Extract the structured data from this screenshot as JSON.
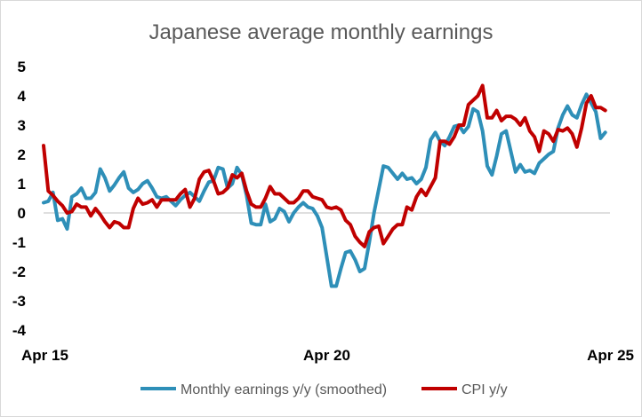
{
  "chart_data": {
    "type": "line",
    "title": "Japanese average monthly earnings",
    "xlabel": "",
    "ylabel": "",
    "ylim": [
      -4,
      5
    ],
    "yticks": [
      5,
      4,
      3,
      2,
      1,
      0,
      -1,
      -2,
      -3,
      -4
    ],
    "xlim": [
      "2015-04",
      "2025-04"
    ],
    "xticks": [
      {
        "label": "Apr 15",
        "x": "2015-04"
      },
      {
        "label": "Apr 20",
        "x": "2020-04"
      },
      {
        "label": "Apr 25",
        "x": "2025-04"
      }
    ],
    "grid": false,
    "legend_position": "bottom",
    "series": [
      {
        "name": "Monthly earnings y/y (smoothed)",
        "color": "#2e8fb8",
        "points": [
          [
            "2015-04",
            0.35
          ],
          [
            "2015-05",
            0.4
          ],
          [
            "2015-06",
            0.7
          ],
          [
            "2015-07",
            -0.25
          ],
          [
            "2015-08",
            -0.2
          ],
          [
            "2015-09",
            -0.55
          ],
          [
            "2015-10",
            0.55
          ],
          [
            "2015-11",
            0.65
          ],
          [
            "2015-12",
            0.85
          ],
          [
            "2016-01",
            0.5
          ],
          [
            "2016-02",
            0.5
          ],
          [
            "2016-03",
            0.7
          ],
          [
            "2016-04",
            1.5
          ],
          [
            "2016-05",
            1.2
          ],
          [
            "2016-06",
            0.75
          ],
          [
            "2016-07",
            0.95
          ],
          [
            "2016-08",
            1.2
          ],
          [
            "2016-09",
            1.4
          ],
          [
            "2016-10",
            0.85
          ],
          [
            "2016-11",
            0.7
          ],
          [
            "2016-12",
            0.8
          ],
          [
            "2017-01",
            1.0
          ],
          [
            "2017-02",
            1.1
          ],
          [
            "2017-03",
            0.85
          ],
          [
            "2017-04",
            0.55
          ],
          [
            "2017-05",
            0.5
          ],
          [
            "2017-06",
            0.55
          ],
          [
            "2017-07",
            0.4
          ],
          [
            "2017-08",
            0.25
          ],
          [
            "2017-09",
            0.45
          ],
          [
            "2017-10",
            0.6
          ],
          [
            "2017-11",
            0.7
          ],
          [
            "2017-12",
            0.55
          ],
          [
            "2018-01",
            0.4
          ],
          [
            "2018-02",
            0.75
          ],
          [
            "2018-03",
            1.05
          ],
          [
            "2018-04",
            1.1
          ],
          [
            "2018-05",
            1.55
          ],
          [
            "2018-06",
            1.5
          ],
          [
            "2018-07",
            0.85
          ],
          [
            "2018-08",
            1.0
          ],
          [
            "2018-09",
            1.55
          ],
          [
            "2018-10",
            1.3
          ],
          [
            "2018-11",
            0.6
          ],
          [
            "2018-12",
            -0.35
          ],
          [
            "2019-01",
            -0.4
          ],
          [
            "2019-02",
            -0.4
          ],
          [
            "2019-03",
            0.3
          ],
          [
            "2019-04",
            -0.3
          ],
          [
            "2019-05",
            -0.2
          ],
          [
            "2019-06",
            0.15
          ],
          [
            "2019-07",
            0.05
          ],
          [
            "2019-08",
            -0.3
          ],
          [
            "2019-09",
            0.0
          ],
          [
            "2019-10",
            0.2
          ],
          [
            "2019-11",
            0.35
          ],
          [
            "2019-12",
            0.2
          ],
          [
            "2020-01",
            0.15
          ],
          [
            "2020-02",
            -0.1
          ],
          [
            "2020-03",
            -0.5
          ],
          [
            "2020-04",
            -1.5
          ],
          [
            "2020-05",
            -2.5
          ],
          [
            "2020-06",
            -2.5
          ],
          [
            "2020-07",
            -1.9
          ],
          [
            "2020-08",
            -1.35
          ],
          [
            "2020-09",
            -1.3
          ],
          [
            "2020-10",
            -1.6
          ],
          [
            "2020-11",
            -2.0
          ],
          [
            "2020-12",
            -1.9
          ],
          [
            "2021-01",
            -1.0
          ],
          [
            "2021-02",
            0.0
          ],
          [
            "2021-03",
            0.8
          ],
          [
            "2021-04",
            1.6
          ],
          [
            "2021-05",
            1.55
          ],
          [
            "2021-06",
            1.35
          ],
          [
            "2021-07",
            1.15
          ],
          [
            "2021-08",
            1.35
          ],
          [
            "2021-09",
            1.15
          ],
          [
            "2021-10",
            1.2
          ],
          [
            "2021-11",
            1.0
          ],
          [
            "2021-12",
            1.15
          ],
          [
            "2022-01",
            1.55
          ],
          [
            "2022-02",
            2.5
          ],
          [
            "2022-03",
            2.75
          ],
          [
            "2022-04",
            2.45
          ],
          [
            "2022-05",
            2.3
          ],
          [
            "2022-06",
            2.6
          ],
          [
            "2022-07",
            2.95
          ],
          [
            "2022-08",
            3.0
          ],
          [
            "2022-09",
            2.75
          ],
          [
            "2022-10",
            2.95
          ],
          [
            "2022-11",
            3.55
          ],
          [
            "2022-12",
            3.45
          ],
          [
            "2023-01",
            2.8
          ],
          [
            "2023-02",
            1.6
          ],
          [
            "2023-03",
            1.3
          ],
          [
            "2023-04",
            1.95
          ],
          [
            "2023-05",
            2.7
          ],
          [
            "2023-06",
            2.8
          ],
          [
            "2023-07",
            2.1
          ],
          [
            "2023-08",
            1.4
          ],
          [
            "2023-09",
            1.65
          ],
          [
            "2023-10",
            1.4
          ],
          [
            "2023-11",
            1.45
          ],
          [
            "2023-12",
            1.35
          ],
          [
            "2024-01",
            1.7
          ],
          [
            "2024-02",
            1.85
          ],
          [
            "2024-03",
            2.0
          ],
          [
            "2024-04",
            2.1
          ],
          [
            "2024-05",
            2.9
          ],
          [
            "2024-06",
            3.35
          ],
          [
            "2024-07",
            3.65
          ],
          [
            "2024-08",
            3.35
          ],
          [
            "2024-09",
            3.25
          ],
          [
            "2024-10",
            3.7
          ],
          [
            "2024-11",
            4.05
          ],
          [
            "2024-12",
            3.75
          ],
          [
            "2025-01",
            3.45
          ],
          [
            "2025-02",
            2.55
          ],
          [
            "2025-03",
            2.75
          ]
        ]
      },
      {
        "name": "CPI y/y",
        "color": "#c00000",
        "points": [
          [
            "2015-04",
            2.3
          ],
          [
            "2015-05",
            0.75
          ],
          [
            "2015-06",
            0.6
          ],
          [
            "2015-07",
            0.4
          ],
          [
            "2015-08",
            0.25
          ],
          [
            "2015-09",
            0.0
          ],
          [
            "2015-10",
            0.05
          ],
          [
            "2015-11",
            0.3
          ],
          [
            "2015-12",
            0.2
          ],
          [
            "2016-01",
            0.2
          ],
          [
            "2016-02",
            -0.1
          ],
          [
            "2016-03",
            0.15
          ],
          [
            "2016-04",
            -0.05
          ],
          [
            "2016-05",
            -0.3
          ],
          [
            "2016-06",
            -0.5
          ],
          [
            "2016-07",
            -0.3
          ],
          [
            "2016-08",
            -0.35
          ],
          [
            "2016-09",
            -0.5
          ],
          [
            "2016-10",
            -0.5
          ],
          [
            "2016-11",
            0.15
          ],
          [
            "2016-12",
            0.5
          ],
          [
            "2017-01",
            0.3
          ],
          [
            "2017-02",
            0.35
          ],
          [
            "2017-03",
            0.45
          ],
          [
            "2017-04",
            0.2
          ],
          [
            "2017-05",
            0.45
          ],
          [
            "2017-06",
            0.45
          ],
          [
            "2017-07",
            0.45
          ],
          [
            "2017-08",
            0.45
          ],
          [
            "2017-09",
            0.65
          ],
          [
            "2017-10",
            0.8
          ],
          [
            "2017-11",
            0.2
          ],
          [
            "2017-12",
            0.5
          ],
          [
            "2018-01",
            1.15
          ],
          [
            "2018-02",
            1.4
          ],
          [
            "2018-03",
            1.45
          ],
          [
            "2018-04",
            1.1
          ],
          [
            "2018-05",
            0.65
          ],
          [
            "2018-06",
            0.7
          ],
          [
            "2018-07",
            0.85
          ],
          [
            "2018-08",
            1.3
          ],
          [
            "2018-09",
            1.2
          ],
          [
            "2018-10",
            1.35
          ],
          [
            "2018-11",
            0.75
          ],
          [
            "2018-12",
            0.3
          ],
          [
            "2019-01",
            0.2
          ],
          [
            "2019-02",
            0.2
          ],
          [
            "2019-03",
            0.5
          ],
          [
            "2019-04",
            0.9
          ],
          [
            "2019-05",
            0.65
          ],
          [
            "2019-06",
            0.65
          ],
          [
            "2019-07",
            0.5
          ],
          [
            "2019-08",
            0.35
          ],
          [
            "2019-09",
            0.35
          ],
          [
            "2019-10",
            0.5
          ],
          [
            "2019-11",
            0.75
          ],
          [
            "2019-12",
            0.75
          ],
          [
            "2020-01",
            0.55
          ],
          [
            "2020-02",
            0.5
          ],
          [
            "2020-03",
            0.45
          ],
          [
            "2020-04",
            0.2
          ],
          [
            "2020-05",
            0.15
          ],
          [
            "2020-06",
            0.2
          ],
          [
            "2020-07",
            0.1
          ],
          [
            "2020-08",
            -0.25
          ],
          [
            "2020-09",
            -0.4
          ],
          [
            "2020-10",
            -0.8
          ],
          [
            "2020-11",
            -1.0
          ],
          [
            "2020-12",
            -1.15
          ],
          [
            "2021-01",
            -0.65
          ],
          [
            "2021-02",
            -0.5
          ],
          [
            "2021-03",
            -0.45
          ],
          [
            "2021-04",
            -1.05
          ],
          [
            "2021-05",
            -0.8
          ],
          [
            "2021-06",
            -0.55
          ],
          [
            "2021-07",
            -0.4
          ],
          [
            "2021-08",
            -0.4
          ],
          [
            "2021-09",
            0.2
          ],
          [
            "2021-10",
            0.1
          ],
          [
            "2021-11",
            0.55
          ],
          [
            "2021-12",
            0.8
          ],
          [
            "2022-01",
            0.6
          ],
          [
            "2022-02",
            0.9
          ],
          [
            "2022-03",
            1.2
          ],
          [
            "2022-04",
            2.45
          ],
          [
            "2022-05",
            2.45
          ],
          [
            "2022-06",
            2.35
          ],
          [
            "2022-07",
            2.6
          ],
          [
            "2022-08",
            3.0
          ],
          [
            "2022-09",
            3.0
          ],
          [
            "2022-10",
            3.7
          ],
          [
            "2022-11",
            3.85
          ],
          [
            "2022-12",
            4.0
          ],
          [
            "2023-01",
            4.35
          ],
          [
            "2023-02",
            3.25
          ],
          [
            "2023-03",
            3.25
          ],
          [
            "2023-04",
            3.5
          ],
          [
            "2023-05",
            3.15
          ],
          [
            "2023-06",
            3.3
          ],
          [
            "2023-07",
            3.3
          ],
          [
            "2023-08",
            3.2
          ],
          [
            "2023-09",
            3.0
          ],
          [
            "2023-10",
            3.25
          ],
          [
            "2023-11",
            2.8
          ],
          [
            "2023-12",
            2.6
          ],
          [
            "2024-01",
            2.1
          ],
          [
            "2024-02",
            2.8
          ],
          [
            "2024-03",
            2.7
          ],
          [
            "2024-04",
            2.45
          ],
          [
            "2024-05",
            2.85
          ],
          [
            "2024-06",
            2.8
          ],
          [
            "2024-07",
            2.9
          ],
          [
            "2024-08",
            2.7
          ],
          [
            "2024-09",
            2.25
          ],
          [
            "2024-10",
            2.9
          ],
          [
            "2024-11",
            3.75
          ],
          [
            "2024-12",
            4.0
          ],
          [
            "2025-01",
            3.6
          ],
          [
            "2025-02",
            3.6
          ],
          [
            "2025-03",
            3.5
          ]
        ]
      }
    ]
  }
}
